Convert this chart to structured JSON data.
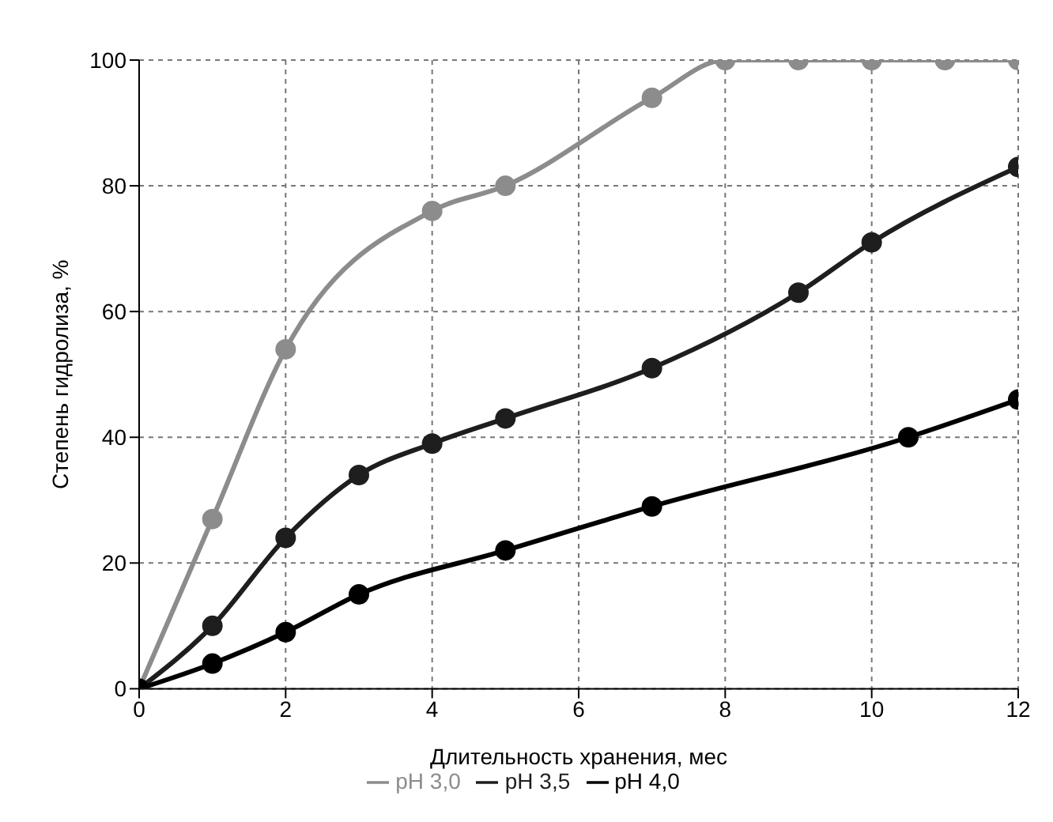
{
  "chart_data": {
    "type": "line",
    "xlabel": "Длительность хранения, мес",
    "ylabel": "Степень гидролиза, %",
    "xlim": [
      0,
      12
    ],
    "xticks": [
      0,
      2,
      4,
      6,
      8,
      10,
      12
    ],
    "ylim": [
      0,
      100
    ],
    "yticks": [
      0,
      20,
      40,
      60,
      80,
      100
    ],
    "grid": true,
    "legend": "bottom",
    "marker": "circle",
    "series": [
      {
        "name": "pH 3,0",
        "color": "#8c8c8c",
        "x": [
          0,
          1,
          2,
          4,
          5,
          7,
          8,
          9,
          10,
          11,
          12
        ],
        "values": [
          0,
          27,
          54,
          76,
          80,
          94,
          100,
          100,
          100,
          100,
          100
        ]
      },
      {
        "name": "pH 3,5",
        "color": "#1e1e1e",
        "x": [
          0,
          1,
          2,
          3,
          4,
          5,
          7,
          9,
          10,
          12
        ],
        "values": [
          0,
          10,
          24,
          34,
          39,
          43,
          51,
          63,
          71,
          83
        ]
      },
      {
        "name": "pH 4,0",
        "color": "#000000",
        "x": [
          0,
          1,
          2,
          3,
          5,
          7,
          10.5,
          12
        ],
        "values": [
          0,
          4,
          9,
          15,
          22,
          29,
          40,
          46
        ]
      }
    ]
  }
}
